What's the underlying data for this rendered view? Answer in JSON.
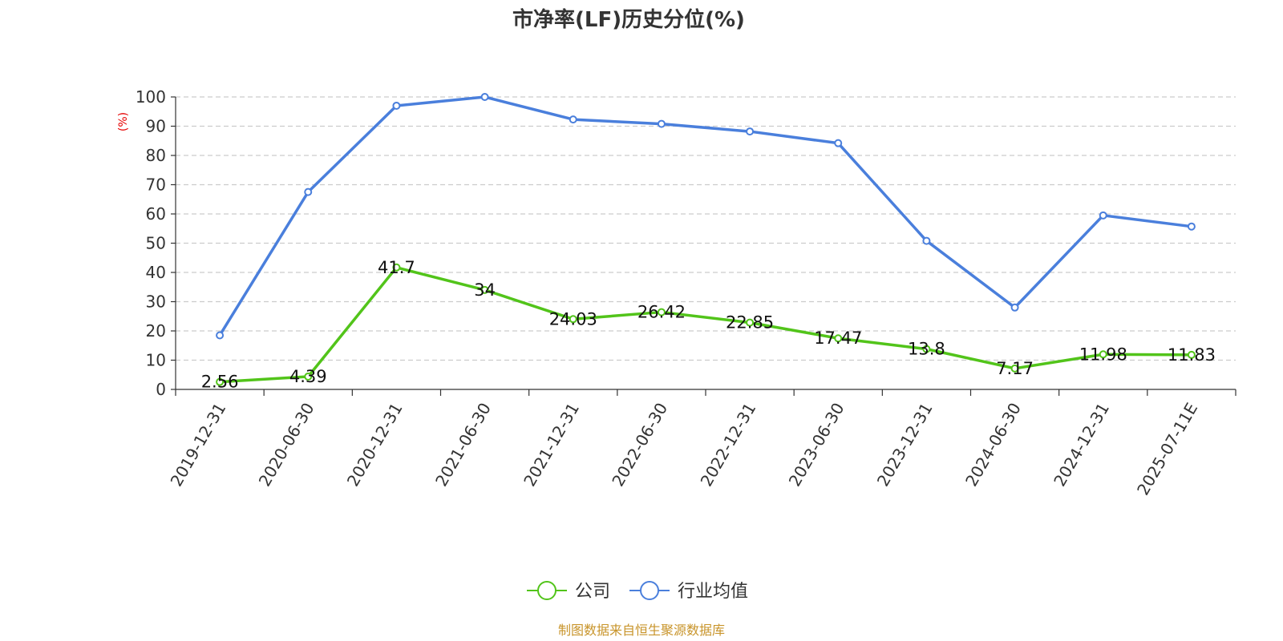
{
  "chart_data": {
    "type": "line",
    "title": "市净率(LF)历史分位(%)",
    "ylabel": "(%)",
    "xlabel": "",
    "ylim": [
      0,
      100
    ],
    "yticks": [
      0,
      10,
      20,
      30,
      40,
      50,
      60,
      70,
      80,
      90,
      100
    ],
    "categories": [
      "2019-12-31",
      "2020-06-30",
      "2020-12-31",
      "2021-06-30",
      "2021-12-31",
      "2022-06-30",
      "2022-12-31",
      "2023-06-30",
      "2023-12-31",
      "2024-06-30",
      "2024-12-31",
      "2025-07-11E"
    ],
    "series": [
      {
        "name": "公司",
        "color": "#52c41a",
        "values": [
          2.56,
          4.39,
          41.7,
          34,
          24.03,
          26.42,
          22.85,
          17.47,
          13.8,
          7.17,
          11.98,
          11.83
        ],
        "labels": [
          "2.56",
          "4.39",
          "41.7",
          "34",
          "24.03",
          "26.42",
          "22.85",
          "17.47",
          "13.8",
          "7.17",
          "11.98",
          "11.83"
        ],
        "show_labels": true
      },
      {
        "name": "行业均值",
        "color": "#4a7fdc",
        "values": [
          18.5,
          67.5,
          97,
          100,
          92.3,
          90.8,
          88.2,
          84.2,
          50.8,
          28,
          59.5,
          55.7
        ],
        "show_labels": false
      }
    ],
    "grid": true,
    "grid_style": "dashed",
    "legend_position": "bottom-center"
  },
  "colors": {
    "unit_label": "#e60000",
    "source_text": "#c8942a",
    "grid": "#cccccc",
    "axis": "#333333"
  },
  "source": "制图数据来自恒生聚源数据库"
}
